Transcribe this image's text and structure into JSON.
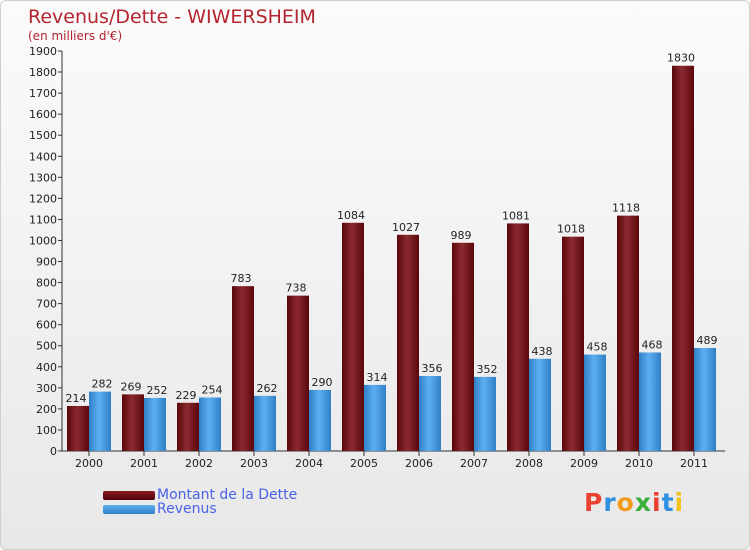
{
  "header": {
    "title": "Revenus/Dette - WIWERSHEIM",
    "subtitle": "(en milliers d'€)"
  },
  "chart_data": {
    "type": "bar",
    "title": "Revenus/Dette - WIWERSHEIM",
    "subtitle": "(en milliers d'€)",
    "xlabel": "",
    "ylabel": "",
    "categories": [
      "2000",
      "2001",
      "2002",
      "2003",
      "2004",
      "2005",
      "2006",
      "2007",
      "2008",
      "2009",
      "2010",
      "2011"
    ],
    "series": [
      {
        "name": "Montant de la Dette",
        "color": "#6b0f13",
        "values": [
          214,
          269,
          229,
          783,
          738,
          1084,
          1027,
          989,
          1081,
          1018,
          1118,
          1830
        ]
      },
      {
        "name": "Revenus",
        "color": "#3d8fd8",
        "values": [
          282,
          252,
          254,
          262,
          290,
          314,
          356,
          352,
          438,
          458,
          468,
          489
        ]
      }
    ],
    "ylim": [
      0,
      1900
    ],
    "yticks": [
      0,
      100,
      200,
      300,
      400,
      500,
      600,
      700,
      800,
      900,
      1000,
      1100,
      1200,
      1300,
      1400,
      1500,
      1600,
      1700,
      1800,
      1900
    ],
    "grid": false,
    "legend_position": "bottom-left"
  },
  "legend": {
    "items": [
      {
        "label": "Montant de la Dette",
        "color": "#6b0f13"
      },
      {
        "label": "Revenus",
        "color": "#3d8fd8"
      }
    ]
  },
  "logo": {
    "text": "Proxiti",
    "letter_colors": [
      "#e8412f",
      "#2f8fe0",
      "#f29a1d",
      "#3cae3a",
      "#e8412f",
      "#2f8fe0",
      "#f2c21d"
    ]
  }
}
